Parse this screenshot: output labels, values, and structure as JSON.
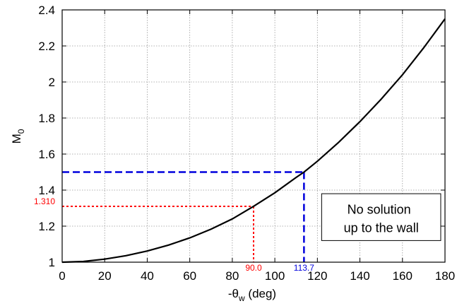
{
  "chart_data": {
    "type": "line",
    "xlabel_prefix": "-θ",
    "xlabel_sub": "w",
    "xlabel_suffix": " (deg)",
    "ylabel_main": "M",
    "ylabel_sub": "0",
    "xlim": [
      0,
      180
    ],
    "ylim": [
      1,
      2.4
    ],
    "xticks": [
      "0",
      "20",
      "40",
      "60",
      "80",
      "100",
      "120",
      "140",
      "160",
      "180"
    ],
    "yticks": [
      "1",
      "1.2",
      "1.4",
      "1.6",
      "1.8",
      "2",
      "2.2",
      "2.4"
    ],
    "grid": true,
    "series": [
      {
        "color": "#000000",
        "x": [
          0,
          10,
          20,
          30,
          40,
          50,
          60,
          70,
          80,
          90,
          100,
          110,
          113.7,
          120,
          130,
          140,
          150,
          160,
          170,
          180
        ],
        "y": [
          1.0,
          1.004,
          1.017,
          1.036,
          1.062,
          1.095,
          1.135,
          1.183,
          1.24,
          1.31,
          1.385,
          1.47,
          1.5,
          1.56,
          1.665,
          1.78,
          1.905,
          2.04,
          2.19,
          2.35
        ]
      }
    ],
    "markers": [
      {
        "x": 90.0,
        "y": 1.31,
        "color": "#ff0000",
        "style": "dotted",
        "x_label": "90.0",
        "y_label": "1.310"
      },
      {
        "x": 113.7,
        "y": 1.5,
        "color": "#0000dd",
        "style": "dashed",
        "x_label": "113.7",
        "y_label": ""
      }
    ],
    "annotation": {
      "lines": [
        "No solution",
        "up to the wall"
      ],
      "x_range": [
        122,
        178
      ],
      "y_range": [
        1.12,
        1.38
      ]
    }
  }
}
